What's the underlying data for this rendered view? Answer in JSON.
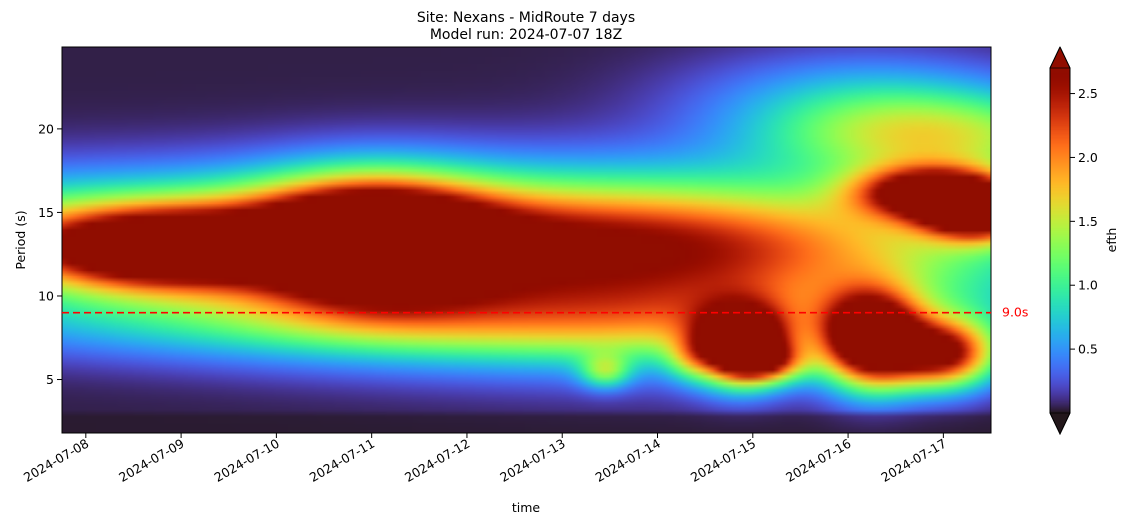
{
  "chart_data": {
    "type": "heatmap",
    "title": "Site: Nexans - MidRoute 7 days",
    "subtitle": "Model run: 2024-07-07 18Z",
    "xlabel": "time",
    "ylabel": "Period (s)",
    "x_ticks": [
      "2024-07-08",
      "2024-07-09",
      "2024-07-10",
      "2024-07-11",
      "2024-07-12",
      "2024-07-13",
      "2024-07-14",
      "2024-07-15",
      "2024-07-16",
      "2024-07-17"
    ],
    "xlim": [
      "2024-07-07 18:00",
      "2024-07-17 12:00"
    ],
    "y_ticks": [
      5,
      10,
      15,
      20
    ],
    "ylim": [
      1.8,
      24.9
    ],
    "colorbar": {
      "label": "efth",
      "ticks": [
        0.5,
        1.0,
        1.5,
        2.0,
        2.5
      ],
      "range": [
        0,
        2.7
      ],
      "colormap": "turbo",
      "extend": "both"
    },
    "reference_line": {
      "y": 9.0,
      "label": "9.0s",
      "color": "#ff0000",
      "style": "dashed"
    },
    "energy_features": [
      {
        "center_time": "2024-07-08 18:00",
        "center_period": 12.8,
        "peak": 2.4
      },
      {
        "center_time": "2024-07-11 00:00",
        "center_period": 13.3,
        "peak": 3.0
      },
      {
        "center_time": "2024-07-14 21:00",
        "center_period": 7.0,
        "peak": 3.0
      },
      {
        "center_time": "2024-07-16 06:00",
        "center_period": 7.3,
        "peak": 3.0
      },
      {
        "center_time": "2024-07-17 00:00",
        "center_period": 6.5,
        "peak": 2.3
      },
      {
        "center_time": "2024-07-16 21:00",
        "center_period": 16.2,
        "peak": 2.5
      },
      {
        "center_time": "2024-07-17 09:00",
        "center_period": 15.0,
        "peak": 2.8
      }
    ]
  }
}
